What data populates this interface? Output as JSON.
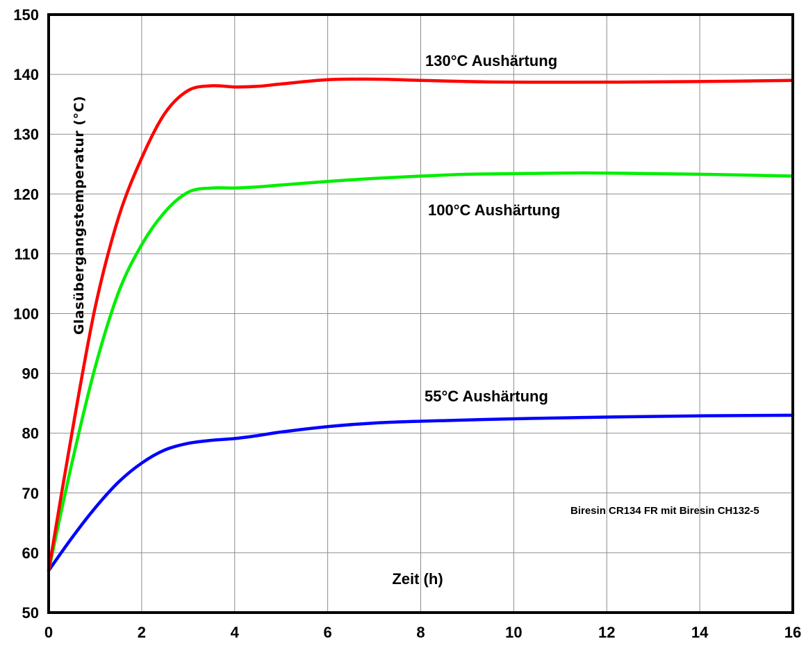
{
  "chart_data": {
    "type": "line",
    "title": "",
    "xlabel": "Zeit (h)",
    "ylabel": "Glasübergangstemperatur (°C)",
    "annotation": "Biresin CR134 FR mit Biresin CH132-5",
    "xlim": [
      0,
      16
    ],
    "ylim": [
      50,
      150
    ],
    "xticks": [
      0,
      2,
      4,
      6,
      8,
      10,
      12,
      14,
      16
    ],
    "yticks": [
      50,
      60,
      70,
      80,
      90,
      100,
      110,
      120,
      130,
      140,
      150
    ],
    "grid": true,
    "legend": "none",
    "series": [
      {
        "name": "130°C Aushärtung",
        "color": "#ff0000",
        "x": [
          0,
          0.5,
          1,
          1.5,
          2,
          2.5,
          3,
          3.5,
          4,
          4.5,
          5,
          6,
          7,
          8,
          9,
          10,
          12,
          14,
          16
        ],
        "y": [
          57,
          80,
          101,
          116,
          126,
          133.5,
          137.3,
          138.1,
          137.9,
          138.0,
          138.4,
          139.1,
          139.2,
          139.0,
          138.8,
          138.7,
          138.7,
          138.8,
          139.0
        ]
      },
      {
        "name": "100°C Aushärtung",
        "color": "#00ee00",
        "x": [
          0,
          0.5,
          1,
          1.5,
          2,
          2.5,
          3,
          3.5,
          4,
          4.5,
          5,
          6,
          7,
          8,
          9,
          10,
          11,
          12,
          14,
          16
        ],
        "y": [
          57,
          75,
          91,
          103.5,
          111.5,
          117,
          120.3,
          121.0,
          121.0,
          121.2,
          121.5,
          122.1,
          122.6,
          123.0,
          123.3,
          123.4,
          123.5,
          123.5,
          123.3,
          123.0
        ]
      },
      {
        "name": "55°C Aushärtung",
        "color": "#0000ff",
        "x": [
          0,
          0.5,
          1,
          1.5,
          2,
          2.5,
          3,
          3.5,
          4,
          4.5,
          5,
          6,
          7,
          8,
          10,
          12,
          14,
          16
        ],
        "y": [
          57,
          62.5,
          67.5,
          71.8,
          75,
          77.2,
          78.3,
          78.8,
          79.1,
          79.6,
          80.2,
          81.1,
          81.7,
          82.0,
          82.4,
          82.7,
          82.9,
          83.0
        ]
      }
    ]
  },
  "series_labels": {
    "s130": "130°C Aushärtung",
    "s100": "100°C Aushärtung",
    "s55": "55°C Aushärtung"
  },
  "labels": {
    "xlabel": "Zeit (h)",
    "ylabel": "Glasübergangstemperatur (°C)",
    "annotation": "Biresin CR134 FR mit Biresin CH132-5"
  }
}
